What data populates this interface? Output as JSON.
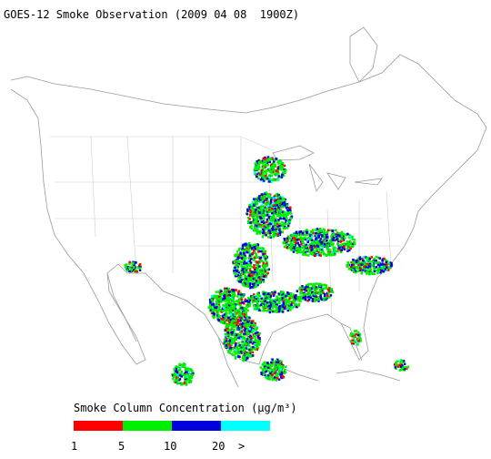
{
  "title": "GOES-12 Smoke Observation (2009 04 08  1900Z)",
  "legend": {
    "title": "Smoke Column Concentration (μg/m³)",
    "colors": [
      "#ff0000",
      "#00ee00",
      "#0000dd",
      "#00ffff"
    ],
    "ticks": [
      "1",
      "5",
      "10",
      "20",
      ">"
    ]
  }
}
